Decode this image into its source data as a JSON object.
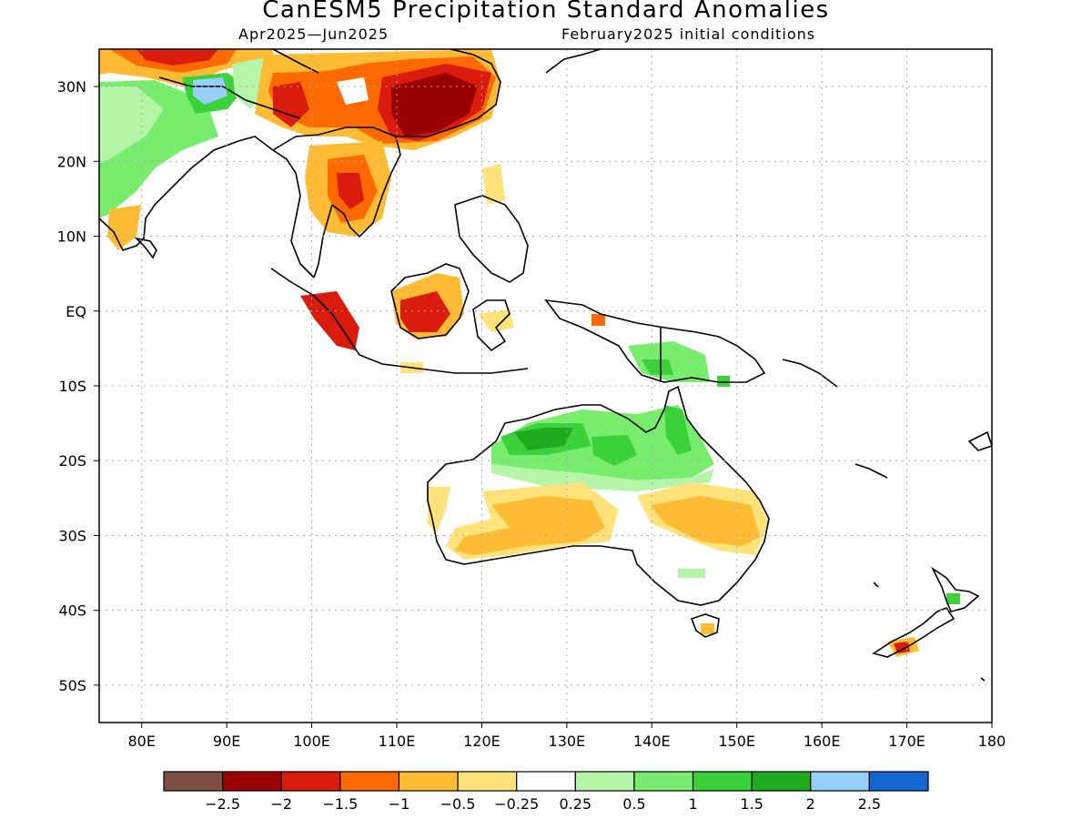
{
  "title": "CanESM5 Precipitation Standard Anomalies",
  "subtitle_left": "Apr2025—Jun2025",
  "subtitle_right": "February2025 initial conditions",
  "lon_labels": [
    {
      "lon": 80,
      "label": "80E"
    },
    {
      "lon": 90,
      "label": "90E"
    },
    {
      "lon": 100,
      "label": "100E"
    },
    {
      "lon": 110,
      "label": "110E"
    },
    {
      "lon": 120,
      "label": "120E"
    },
    {
      "lon": 130,
      "label": "130E"
    },
    {
      "lon": 140,
      "label": "140E"
    },
    {
      "lon": 150,
      "label": "150E"
    },
    {
      "lon": 160,
      "label": "160E"
    },
    {
      "lon": 170,
      "label": "170E"
    },
    {
      "lon": 180,
      "label": "180"
    }
  ],
  "lat_labels": [
    {
      "lat": 30,
      "label": "30N"
    },
    {
      "lat": 20,
      "label": "20N"
    },
    {
      "lat": 10,
      "label": "10N"
    },
    {
      "lat": 0,
      "label": "EQ"
    },
    {
      "lat": -10,
      "label": "10S"
    },
    {
      "lat": -20,
      "label": "20S"
    },
    {
      "lat": -30,
      "label": "30S"
    },
    {
      "lat": -40,
      "label": "40S"
    },
    {
      "lat": -50,
      "label": "50S"
    }
  ],
  "extent": {
    "lon": [
      75,
      180
    ],
    "lat": [
      -55,
      35
    ]
  },
  "colorbar": {
    "colors": [
      "#7b4f44",
      "#9b0000",
      "#d91c0b",
      "#ff6a00",
      "#ffbb33",
      "#ffe27a",
      "#ffffff",
      "#b4f5a8",
      "#78ec6c",
      "#3ad13a",
      "#1fab1f",
      "#96cff7",
      "#1464d2"
    ],
    "labels": [
      "−2.5",
      "−2",
      "−1.5",
      "−1",
      "−0.5",
      "−0.25",
      "0.25",
      "0.5",
      "1",
      "1.5",
      "2",
      "2.5"
    ]
  }
}
